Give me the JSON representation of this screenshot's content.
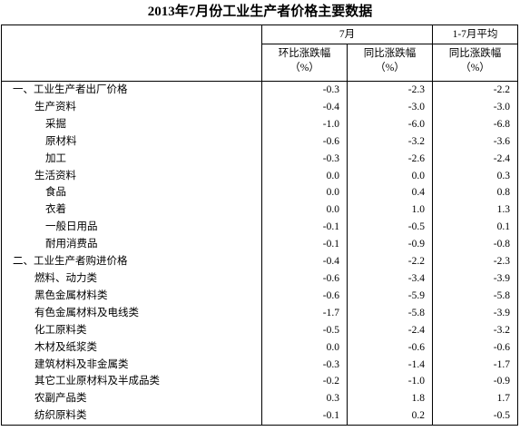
{
  "header": {
    "title": "2013年7月份工业生产者价格主要数据",
    "group_current": "7月",
    "group_ytd": "1-7月平均",
    "cols": [
      {
        "name": "环比涨跌幅",
        "unit": "（%）"
      },
      {
        "name": "同比涨跌幅",
        "unit": "（%）"
      },
      {
        "name": "同比涨跌幅",
        "unit": "（%）"
      }
    ]
  },
  "table": {
    "rows": [
      [
        "一、工业生产者出厂价格",
        "-0.3",
        "-2.3",
        "-2.2"
      ],
      [
        "生产资料",
        "-0.4",
        "-3.0",
        "-3.0"
      ],
      [
        "采掘",
        "-1.0",
        "-6.0",
        "-6.8"
      ],
      [
        "原材料",
        "-0.6",
        "-3.2",
        "-3.6"
      ],
      [
        "加工",
        "-0.3",
        "-2.6",
        "-2.4"
      ],
      [
        "生活资料",
        "0.0",
        "0.0",
        "0.3"
      ],
      [
        "食品",
        "0.0",
        "0.4",
        "0.8"
      ],
      [
        "衣着",
        "0.0",
        "1.0",
        "1.3"
      ],
      [
        "一般日用品",
        "-0.1",
        "-0.5",
        "0.1"
      ],
      [
        "耐用消费品",
        "-0.1",
        "-0.9",
        "-0.8"
      ],
      [
        "二、工业生产者购进价格",
        "-0.4",
        "-2.2",
        "-2.3"
      ],
      [
        "燃料、动力类",
        "-0.6",
        "-3.4",
        "-3.9"
      ],
      [
        "黑色金属材料类",
        "-0.6",
        "-5.9",
        "-5.8"
      ],
      [
        "有色金属材料及电线类",
        "-1.7",
        "-5.8",
        "-3.9"
      ],
      [
        "化工原料类",
        "-0.5",
        "-2.4",
        "-3.2"
      ],
      [
        "木材及纸浆类",
        "0.0",
        "-0.6",
        "-0.6"
      ],
      [
        "建筑材料及非金属类",
        "-0.3",
        "-1.4",
        "-1.7"
      ],
      [
        "其它工业原材料及半成品类",
        "-0.2",
        "-1.0",
        "-0.9"
      ],
      [
        "农副产品类",
        "0.3",
        "1.8",
        "1.7"
      ],
      [
        "纺织原料类",
        "-0.1",
        "0.2",
        "-0.5"
      ]
    ]
  }
}
